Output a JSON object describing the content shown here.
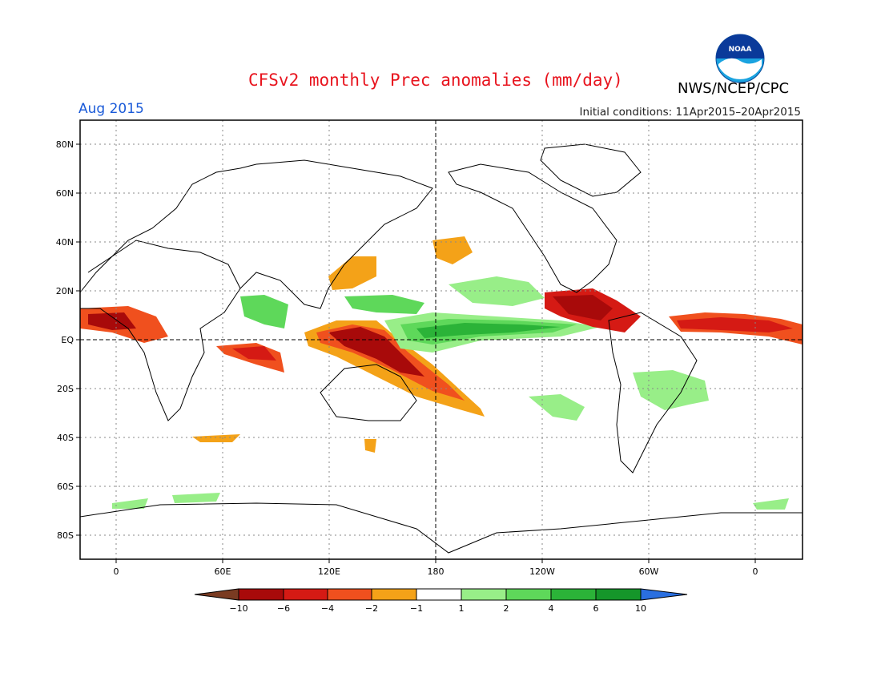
{
  "header": {
    "title": "CFSv2 monthly Prec anomalies (mm/day)",
    "month": "Aug 2015",
    "initial_conditions": "Initial conditions: 11Apr2015–20Apr2015",
    "agency": "NWS/NCEP/CPC",
    "logo_text": "NOAA"
  },
  "map": {
    "lat_labels": [
      "80N",
      "60N",
      "40N",
      "20N",
      "EQ",
      "20S",
      "40S",
      "60S",
      "80S"
    ],
    "lon_labels": [
      "0",
      "60E",
      "120E",
      "180",
      "120W",
      "60W",
      "0"
    ]
  },
  "colorbar": {
    "labels": [
      "−10",
      "−6",
      "−4",
      "−2",
      "−1",
      "1",
      "2",
      "4",
      "6",
      "10"
    ],
    "colors": [
      "#7a3b22",
      "#a80a0a",
      "#d51a14",
      "#f0501e",
      "#f4a218",
      "#ffffff",
      "#98ee88",
      "#5ed85a",
      "#2bb338",
      "#15962a",
      "#2a6fe0"
    ]
  },
  "colors": {
    "title": "#e8141e",
    "month": "#1a5ad8",
    "dry_strong": "#a80a0a",
    "dry_mid": "#d51a14",
    "dry_weak": "#f4a218",
    "wet_weak": "#98ee88",
    "wet_mid": "#5ed85a",
    "wet_strong": "#15962a"
  }
}
